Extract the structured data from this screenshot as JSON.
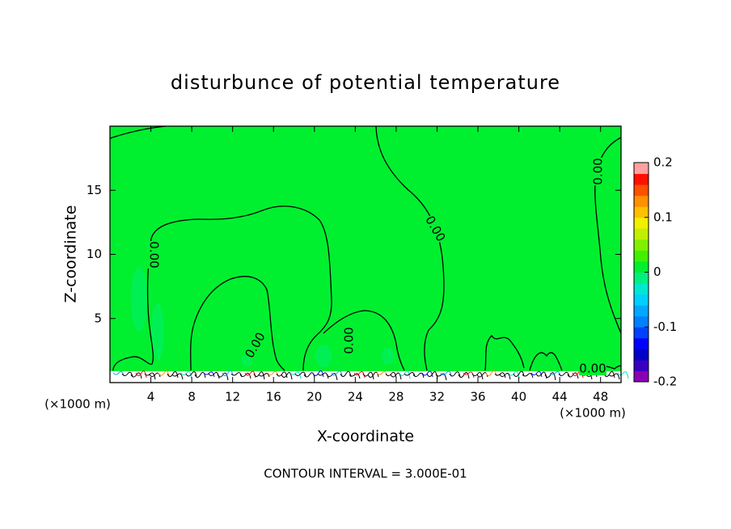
{
  "chart_data": {
    "type": "contour",
    "title": "disturbunce of potential temperature",
    "xlabel": "X-coordinate",
    "ylabel": "Z-coordinate",
    "x_unit": "(×1000 m)",
    "y_unit": "(×1000 m)",
    "xlim": [
      0,
      50
    ],
    "xticks": [
      4,
      8,
      12,
      16,
      20,
      24,
      28,
      32,
      36,
      40,
      44,
      48
    ],
    "ylim": [
      0,
      20
    ],
    "yticks": [
      5,
      10,
      15
    ],
    "colorbar": {
      "clim": [
        -0.2,
        0.2
      ],
      "ticks": [
        -0.2,
        -0.1,
        0,
        0.1,
        0.2
      ],
      "colors": [
        "#8a00b4",
        "#3a00c0",
        "#0000c8",
        "#0000ff",
        "#0040ff",
        "#0080ff",
        "#00a8ff",
        "#00d0ff",
        "#00e8d0",
        "#00f080",
        "#00f030",
        "#40f000",
        "#80f000",
        "#c0f000",
        "#f0f000",
        "#ffc000",
        "#ff9000",
        "#ff5000",
        "#ff1000",
        "#ffa0a0"
      ]
    },
    "contours": {
      "level": 0,
      "label": "0.00"
    },
    "footer": "CONTOUR INTERVAL = 3.000E-01"
  }
}
